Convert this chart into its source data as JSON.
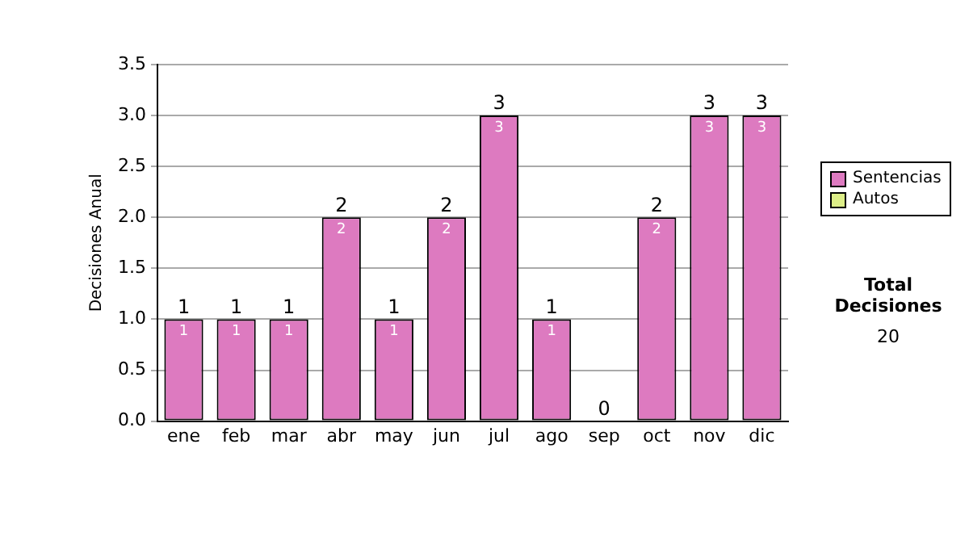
{
  "chart_data": {
    "type": "bar",
    "ylabel": "Decisiones Anual",
    "categories": [
      "ene",
      "feb",
      "mar",
      "abr",
      "may",
      "jun",
      "jul",
      "ago",
      "sep",
      "oct",
      "nov",
      "dic"
    ],
    "stacked": true,
    "series": [
      {
        "name": "Sentencias",
        "color": "#dd7ac0",
        "values": [
          1,
          1,
          1,
          2,
          1,
          2,
          3,
          1,
          0,
          2,
          3,
          3
        ],
        "value_labels": [
          "1",
          "1",
          "1",
          "2",
          "1",
          "2",
          "3",
          "1",
          null,
          "2",
          "3",
          "3"
        ]
      },
      {
        "name": "Autos",
        "color": "#ddee88",
        "values": [
          0,
          0,
          0,
          0,
          0,
          0,
          0,
          0,
          0,
          0,
          0,
          0
        ]
      }
    ],
    "totals": [
      "1",
      "1",
      "1",
      "2",
      "1",
      "2",
      "3",
      "1",
      "0",
      "2",
      "3",
      "3"
    ],
    "ylim": [
      0,
      3.5
    ],
    "yticks": [
      {
        "value": 0,
        "label": "0.0"
      },
      {
        "value": 0.5,
        "label": "0.5"
      },
      {
        "value": 1,
        "label": "1.0"
      },
      {
        "value": 1.5,
        "label": "1.5"
      },
      {
        "value": 2,
        "label": "2.0"
      },
      {
        "value": 2.5,
        "label": "2.5"
      },
      {
        "value": 3,
        "label": "3.0"
      },
      {
        "value": 3.5,
        "label": "3.5"
      }
    ],
    "grid": "y",
    "legend": "right",
    "annotations": [
      "Total Decisiones",
      "20"
    ]
  }
}
